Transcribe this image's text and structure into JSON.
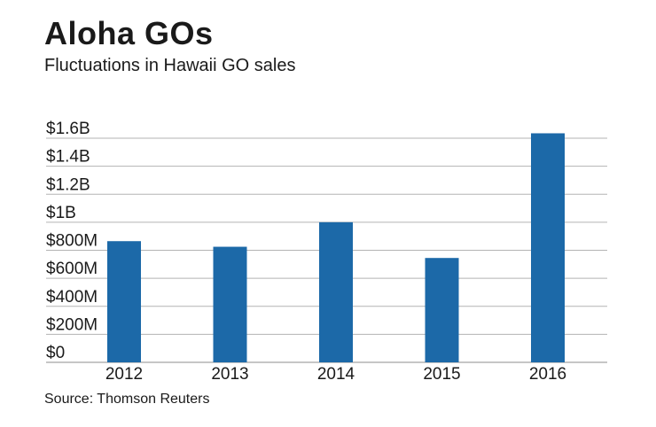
{
  "header": {
    "title": "Aloha GOs",
    "subtitle": "Fluctuations in Hawaii GO sales"
  },
  "footer": {
    "source": "Source: Thomson Reuters"
  },
  "chart_data": {
    "type": "bar",
    "title": "Aloha GOs",
    "subtitle": "Fluctuations in Hawaii GO sales",
    "xlabel": "",
    "ylabel": "",
    "categories": [
      "2012",
      "2013",
      "2014",
      "2015",
      "2016"
    ],
    "values": [
      865,
      825,
      1000,
      745,
      1635
    ],
    "unit": "millions of dollars",
    "ylim": [
      0,
      1600
    ],
    "yticks": [
      0,
      200,
      400,
      600,
      800,
      1000,
      1200,
      1400,
      1600
    ],
    "ytick_labels": [
      "$0",
      "$200M",
      "$400M",
      "$600M",
      "$800M",
      "$1B",
      "$1.2B",
      "$1.4B",
      "$1.6B"
    ],
    "grid": true,
    "legend": "none",
    "bar_color": "#1c69a8",
    "grid_color": "#b3b3b3"
  }
}
